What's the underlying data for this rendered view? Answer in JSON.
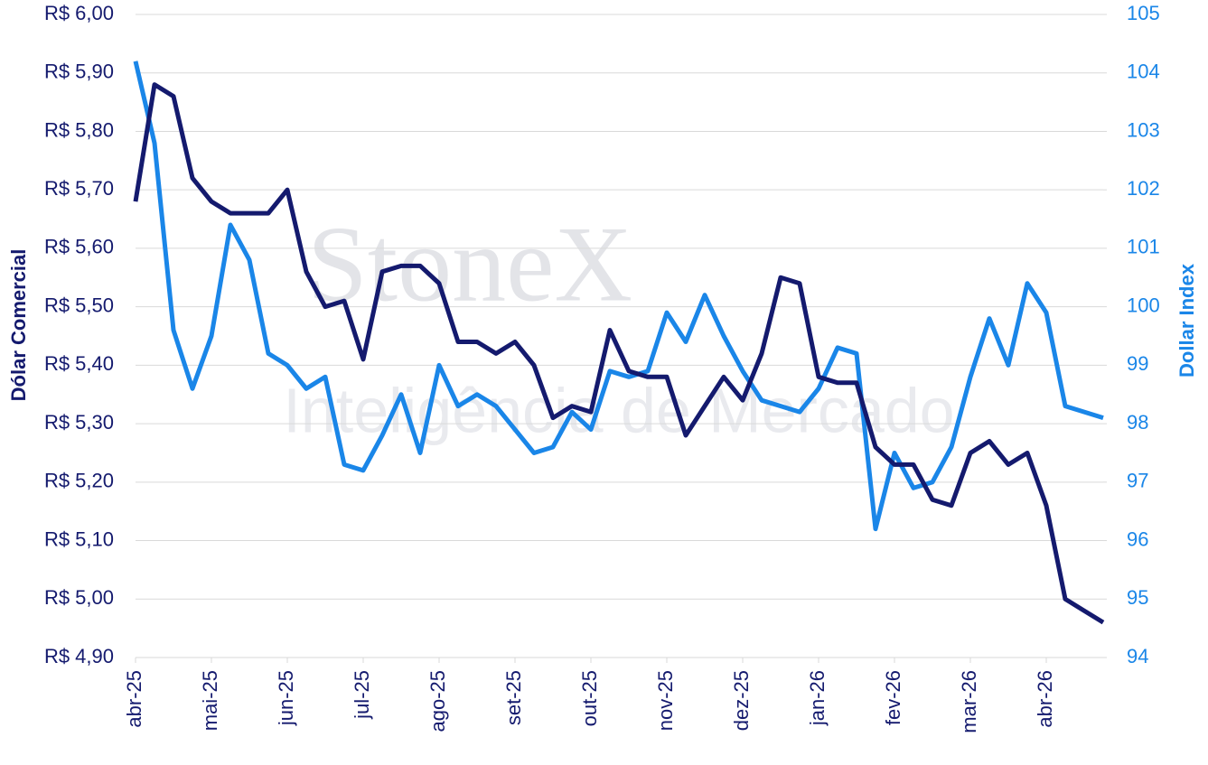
{
  "chart_data": {
    "type": "line",
    "watermark": "StoneX",
    "watermark_subtitle": "Inteligência de Mercado",
    "ylabel": "Dólar Comercial",
    "y2label": "Dollar Index",
    "categories": [
      "abr-25",
      null,
      null,
      null,
      "mai-25",
      null,
      null,
      null,
      "jun-25",
      null,
      null,
      null,
      "jul-25",
      null,
      null,
      null,
      "ago-25",
      null,
      null,
      null,
      "set-25",
      null,
      null,
      null,
      "out-25",
      null,
      null,
      null,
      "nov-25",
      null,
      null,
      null,
      "dez-25",
      null,
      null,
      null,
      "jan-26",
      null,
      null,
      null,
      "fev-26",
      null,
      null,
      null,
      "mar-26",
      null,
      null,
      null,
      "abr-26",
      null,
      null,
      null
    ],
    "series": [
      {
        "color": "#141a6e",
        "axis": "y",
        "values": [
          5.68,
          5.88,
          5.86,
          5.72,
          5.68,
          5.66,
          5.66,
          5.66,
          5.7,
          5.56,
          5.5,
          5.51,
          5.41,
          5.56,
          5.57,
          5.57,
          5.54,
          5.44,
          5.44,
          5.42,
          5.44,
          5.4,
          5.31,
          5.33,
          5.32,
          5.46,
          5.39,
          5.38,
          5.38,
          5.28,
          5.33,
          5.38,
          5.34,
          5.42,
          5.55,
          5.54,
          5.38,
          5.37,
          5.37,
          5.26,
          5.23,
          5.23,
          5.17,
          5.16,
          5.25,
          5.27,
          5.23,
          5.25,
          5.16,
          5.0,
          4.98,
          4.96
        ]
      },
      {
        "color": "#1a86e8",
        "axis": "y2",
        "values": [
          104.2,
          102.8,
          99.6,
          98.6,
          99.5,
          101.4,
          100.8,
          99.2,
          99.0,
          98.6,
          98.8,
          97.3,
          97.2,
          97.8,
          98.5,
          97.5,
          99.0,
          98.3,
          98.5,
          98.3,
          97.9,
          97.5,
          97.6,
          98.2,
          97.9,
          98.9,
          98.8,
          98.9,
          99.9,
          99.4,
          100.2,
          99.5,
          98.9,
          98.4,
          98.3,
          98.2,
          98.6,
          99.3,
          99.2,
          96.2,
          97.5,
          96.9,
          97.0,
          97.6,
          98.8,
          99.8,
          99.0,
          100.4,
          99.9,
          98.3,
          98.2,
          98.1
        ]
      }
    ],
    "ylim": [
      4.9,
      6.0
    ],
    "yticks": [
      {
        "value": 4.9,
        "label": "R$ 4,90"
      },
      {
        "value": 5.0,
        "label": "R$ 5,00"
      },
      {
        "value": 5.1,
        "label": "R$ 5,10"
      },
      {
        "value": 5.2,
        "label": "R$ 5,20"
      },
      {
        "value": 5.3,
        "label": "R$ 5,30"
      },
      {
        "value": 5.4,
        "label": "R$ 5,40"
      },
      {
        "value": 5.5,
        "label": "R$ 5,50"
      },
      {
        "value": 5.6,
        "label": "R$ 5,60"
      },
      {
        "value": 5.7,
        "label": "R$ 5,70"
      },
      {
        "value": 5.8,
        "label": "R$ 5,80"
      },
      {
        "value": 5.9,
        "label": "R$ 5,90"
      },
      {
        "value": 6.0,
        "label": "R$ 6,00"
      }
    ],
    "y2lim": [
      94,
      105
    ],
    "y2ticks": [
      94,
      95,
      96,
      97,
      98,
      99,
      100,
      101,
      102,
      103,
      104,
      105
    ],
    "grid": true
  }
}
